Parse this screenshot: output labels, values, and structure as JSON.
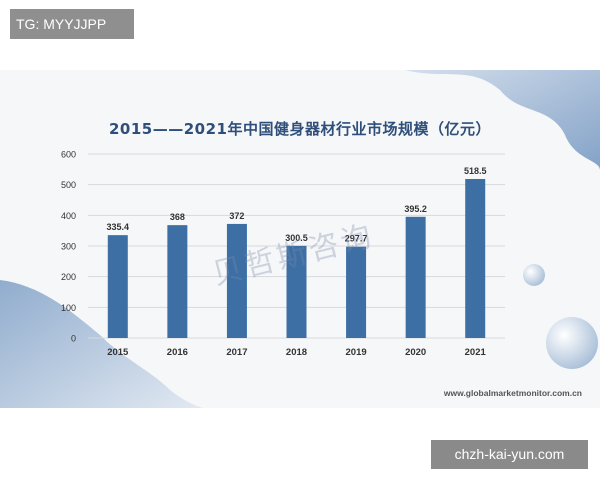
{
  "overlay": {
    "top_tag": "TG: MYYJJPP",
    "bottom_tag": "chzh-kai-yun.com"
  },
  "colors": {
    "bar": "#3d6fa5",
    "title": "#2f4f7a",
    "grid": "#d6d9dd",
    "text": "#333333"
  },
  "watermark": "贝哲斯咨询",
  "source": "www.globalmarketmonitor.com.cn",
  "chart_data": {
    "type": "bar",
    "title": "2015——2021年中国健身器材行业市场规模（亿元）",
    "xlabel": "",
    "ylabel": "",
    "categories": [
      "2015",
      "2016",
      "2017",
      "2018",
      "2019",
      "2020",
      "2021"
    ],
    "values": [
      335.4,
      368,
      372,
      300.5,
      297.7,
      395.2,
      518.5
    ],
    "value_labels": [
      "335.4",
      "368",
      "372",
      "300.5",
      "297.7",
      "395.2",
      "518.5"
    ],
    "ylim": [
      0,
      600
    ],
    "yticks": [
      0,
      100,
      200,
      300,
      400,
      500,
      600
    ],
    "grid": true,
    "legend": "none"
  }
}
